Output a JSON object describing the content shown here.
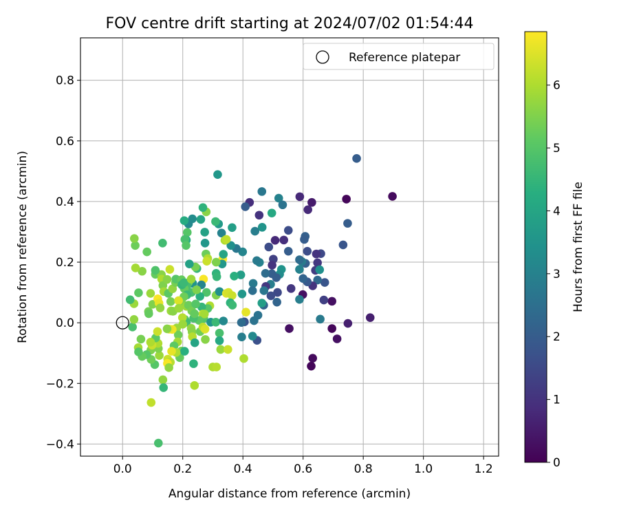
{
  "chart_data": {
    "type": "scatter",
    "title": "FOV centre drift starting at 2024/07/02 01:54:44",
    "xlabel": "Angular distance from reference (arcmin)",
    "ylabel": "Rotation from reference (arcmin)",
    "xlim": [
      -0.14,
      1.25
    ],
    "ylim": [
      -0.44,
      0.94
    ],
    "xticks": [
      0.0,
      0.2,
      0.4,
      0.6,
      0.8,
      1.0,
      1.2
    ],
    "xtick_labels": [
      "0.0",
      "0.2",
      "0.4",
      "0.6",
      "0.8",
      "1.0",
      "1.2"
    ],
    "yticks": [
      -0.4,
      -0.2,
      0.0,
      0.2,
      0.4,
      0.6,
      0.8
    ],
    "ytick_labels": [
      "−0.4",
      "−0.2",
      "0.0",
      "0.2",
      "0.4",
      "0.6",
      "0.8"
    ],
    "grid": true,
    "legend": {
      "position": "top-right",
      "entries": [
        {
          "label": "Reference platepar",
          "marker": "open-circle"
        }
      ]
    },
    "reference_point": {
      "x": 0.0,
      "y": 0.0
    },
    "colorbar": {
      "label": "Hours from first FF file",
      "colormap": "viridis",
      "range": [
        0,
        6.85
      ],
      "ticks": [
        0,
        1,
        2,
        3,
        4,
        5,
        6
      ],
      "tick_labels": [
        "0",
        "1",
        "2",
        "3",
        "4",
        "5",
        "6"
      ]
    },
    "points": [
      {
        "x": 0.897,
        "y": 0.417,
        "t": 0.2
      },
      {
        "x": 0.778,
        "y": 0.542,
        "t": 2.0
      },
      {
        "x": 0.744,
        "y": 0.408,
        "t": 0.1
      },
      {
        "x": 0.748,
        "y": 0.328,
        "t": 2.0
      },
      {
        "x": 0.733,
        "y": 0.257,
        "t": 1.8
      },
      {
        "x": 0.823,
        "y": 0.017,
        "t": 0.6
      },
      {
        "x": 0.749,
        "y": -0.002,
        "t": 0.6
      },
      {
        "x": 0.713,
        "y": -0.053,
        "t": 0.3
      },
      {
        "x": 0.696,
        "y": -0.019,
        "t": 0.1
      },
      {
        "x": 0.696,
        "y": 0.071,
        "t": 0.3
      },
      {
        "x": 0.669,
        "y": 0.075,
        "t": 1.3
      },
      {
        "x": 0.672,
        "y": 0.133,
        "t": 1.8
      },
      {
        "x": 0.659,
        "y": 0.228,
        "t": 1.5
      },
      {
        "x": 0.644,
        "y": 0.227,
        "t": 1.0
      },
      {
        "x": 0.648,
        "y": 0.198,
        "t": 1.1
      },
      {
        "x": 0.641,
        "y": 0.173,
        "t": 1.2
      },
      {
        "x": 0.655,
        "y": 0.175,
        "t": 3.4
      },
      {
        "x": 0.648,
        "y": 0.141,
        "t": 2.3
      },
      {
        "x": 0.632,
        "y": 0.122,
        "t": 1.0
      },
      {
        "x": 0.614,
        "y": 0.135,
        "t": 1.9
      },
      {
        "x": 0.6,
        "y": 0.146,
        "t": 2.2
      },
      {
        "x": 0.657,
        "y": 0.012,
        "t": 2.8
      },
      {
        "x": 0.632,
        "y": -0.117,
        "t": 0.2
      },
      {
        "x": 0.627,
        "y": -0.143,
        "t": 0.1
      },
      {
        "x": 0.629,
        "y": 0.397,
        "t": 0.5
      },
      {
        "x": 0.589,
        "y": 0.416,
        "t": 0.8
      },
      {
        "x": 0.616,
        "y": 0.373,
        "t": 0.8
      },
      {
        "x": 0.607,
        "y": 0.285,
        "t": 2.1
      },
      {
        "x": 0.604,
        "y": 0.275,
        "t": 2.0
      },
      {
        "x": 0.614,
        "y": 0.236,
        "t": 1.6
      },
      {
        "x": 0.608,
        "y": 0.196,
        "t": 2.1
      },
      {
        "x": 0.596,
        "y": 0.202,
        "t": 2.8
      },
      {
        "x": 0.588,
        "y": 0.208,
        "t": 2.4
      },
      {
        "x": 0.588,
        "y": 0.176,
        "t": 3.0
      },
      {
        "x": 0.599,
        "y": 0.093,
        "t": 0.3
      },
      {
        "x": 0.588,
        "y": 0.077,
        "t": 2.9
      },
      {
        "x": 0.554,
        "y": -0.019,
        "t": 0.3
      },
      {
        "x": 0.56,
        "y": 0.113,
        "t": 1.1
      },
      {
        "x": 0.551,
        "y": 0.236,
        "t": 2.0
      },
      {
        "x": 0.551,
        "y": 0.305,
        "t": 1.6
      },
      {
        "x": 0.536,
        "y": 0.273,
        "t": 0.9
      },
      {
        "x": 0.519,
        "y": 0.411,
        "t": 3.0
      },
      {
        "x": 0.532,
        "y": 0.389,
        "t": 2.6
      },
      {
        "x": 0.528,
        "y": 0.176,
        "t": 3.5
      },
      {
        "x": 0.522,
        "y": 0.16,
        "t": 3.3
      },
      {
        "x": 0.511,
        "y": 0.149,
        "t": 2.0
      },
      {
        "x": 0.515,
        "y": 0.1,
        "t": 1.5
      },
      {
        "x": 0.513,
        "y": 0.068,
        "t": 2.2
      },
      {
        "x": 0.507,
        "y": 0.272,
        "t": 0.8
      },
      {
        "x": 0.501,
        "y": 0.21,
        "t": 1.3
      },
      {
        "x": 0.497,
        "y": 0.19,
        "t": 1.0
      },
      {
        "x": 0.496,
        "y": 0.162,
        "t": 2.0
      },
      {
        "x": 0.492,
        "y": 0.127,
        "t": 2.9
      },
      {
        "x": 0.493,
        "y": 0.089,
        "t": 1.6
      },
      {
        "x": 0.486,
        "y": 0.25,
        "t": 1.6
      },
      {
        "x": 0.475,
        "y": 0.163,
        "t": 2.4
      },
      {
        "x": 0.476,
        "y": 0.12,
        "t": 1.1
      },
      {
        "x": 0.47,
        "y": 0.106,
        "t": 2.7
      },
      {
        "x": 0.469,
        "y": 0.058,
        "t": 2.2
      },
      {
        "x": 0.463,
        "y": 0.065,
        "t": 3.8
      },
      {
        "x": 0.463,
        "y": 0.433,
        "t": 2.7
      },
      {
        "x": 0.464,
        "y": 0.315,
        "t": 3.5
      },
      {
        "x": 0.454,
        "y": 0.355,
        "t": 1.0
      },
      {
        "x": 0.44,
        "y": 0.302,
        "t": 2.9
      },
      {
        "x": 0.422,
        "y": 0.397,
        "t": 0.9
      },
      {
        "x": 0.408,
        "y": 0.383,
        "t": 2.0
      },
      {
        "x": 0.496,
        "y": 0.362,
        "t": 4.1
      },
      {
        "x": 0.455,
        "y": 0.199,
        "t": 3.0
      },
      {
        "x": 0.446,
        "y": 0.205,
        "t": 2.8
      },
      {
        "x": 0.434,
        "y": 0.13,
        "t": 2.8
      },
      {
        "x": 0.432,
        "y": 0.106,
        "t": 2.5
      },
      {
        "x": 0.45,
        "y": 0.025,
        "t": 2.6
      },
      {
        "x": 0.437,
        "y": 0.007,
        "t": 2.6
      },
      {
        "x": 0.447,
        "y": -0.058,
        "t": 1.7
      },
      {
        "x": 0.432,
        "y": -0.044,
        "t": 3.2
      },
      {
        "x": 0.405,
        "y": 0.003,
        "t": 1.8
      },
      {
        "x": 0.395,
        "y": 0.001,
        "t": 2.4
      },
      {
        "x": 0.396,
        "y": -0.047,
        "t": 2.9
      },
      {
        "x": 0.397,
        "y": 0.095,
        "t": 3.6
      },
      {
        "x": 0.393,
        "y": 0.158,
        "t": 3.8
      },
      {
        "x": 0.399,
        "y": 0.234,
        "t": 3.1
      },
      {
        "x": 0.378,
        "y": 0.245,
        "t": 2.7
      },
      {
        "x": 0.36,
        "y": 0.255,
        "t": 3.4
      },
      {
        "x": 0.364,
        "y": 0.314,
        "t": 3.8
      },
      {
        "x": 0.329,
        "y": 0.296,
        "t": 3.0
      },
      {
        "x": 0.319,
        "y": 0.326,
        "t": 3.7
      },
      {
        "x": 0.309,
        "y": 0.334,
        "t": 4.6
      },
      {
        "x": 0.316,
        "y": 0.489,
        "t": 3.6
      },
      {
        "x": 0.278,
        "y": 0.366,
        "t": 5.6
      },
      {
        "x": 0.267,
        "y": 0.38,
        "t": 4.4
      },
      {
        "x": 0.273,
        "y": 0.299,
        "t": 3.9
      },
      {
        "x": 0.26,
        "y": 0.341,
        "t": 4.0
      },
      {
        "x": 0.232,
        "y": 0.343,
        "t": 3.3
      },
      {
        "x": 0.219,
        "y": 0.326,
        "t": 3.2
      },
      {
        "x": 0.205,
        "y": 0.337,
        "t": 4.2
      },
      {
        "x": 0.215,
        "y": 0.298,
        "t": 5.0
      },
      {
        "x": 0.212,
        "y": 0.273,
        "t": 4.2
      },
      {
        "x": 0.207,
        "y": 0.275,
        "t": 4.8
      },
      {
        "x": 0.211,
        "y": 0.255,
        "t": 5.0
      },
      {
        "x": 0.274,
        "y": 0.263,
        "t": 3.6
      },
      {
        "x": 0.277,
        "y": 0.227,
        "t": 5.3
      },
      {
        "x": 0.283,
        "y": 0.212,
        "t": 6.0
      },
      {
        "x": 0.28,
        "y": 0.203,
        "t": 6.3
      },
      {
        "x": 0.333,
        "y": 0.21,
        "t": 6.8
      },
      {
        "x": 0.335,
        "y": 0.226,
        "t": 4.0
      },
      {
        "x": 0.34,
        "y": 0.272,
        "t": 6.0
      },
      {
        "x": 0.345,
        "y": 0.275,
        "t": 6.2
      },
      {
        "x": 0.331,
        "y": 0.194,
        "t": 3.6
      },
      {
        "x": 0.311,
        "y": 0.2,
        "t": 5.5
      },
      {
        "x": 0.311,
        "y": 0.163,
        "t": 4.4
      },
      {
        "x": 0.313,
        "y": 0.152,
        "t": 4.5
      },
      {
        "x": 0.311,
        "y": 0.091,
        "t": 5.5
      },
      {
        "x": 0.322,
        "y": 0.103,
        "t": 3.4
      },
      {
        "x": 0.345,
        "y": 0.097,
        "t": 6.5
      },
      {
        "x": 0.352,
        "y": 0.1,
        "t": 6.4
      },
      {
        "x": 0.364,
        "y": 0.09,
        "t": 6.3
      },
      {
        "x": 0.358,
        "y": 0.066,
        "t": 4.4
      },
      {
        "x": 0.365,
        "y": 0.058,
        "t": 4.6
      },
      {
        "x": 0.371,
        "y": 0.154,
        "t": 4.3
      },
      {
        "x": 0.29,
        "y": 0.056,
        "t": 6.0
      },
      {
        "x": 0.283,
        "y": 0.047,
        "t": 5.0
      },
      {
        "x": 0.279,
        "y": 0.1,
        "t": 4.9
      },
      {
        "x": 0.269,
        "y": 0.144,
        "t": 6.8
      },
      {
        "x": 0.262,
        "y": 0.125,
        "t": 3.1
      },
      {
        "x": 0.257,
        "y": 0.087,
        "t": 4.3
      },
      {
        "x": 0.263,
        "y": 0.052,
        "t": 4.5
      },
      {
        "x": 0.267,
        "y": 0.029,
        "t": 6.2
      },
      {
        "x": 0.27,
        "y": 0.014,
        "t": 5.0
      },
      {
        "x": 0.272,
        "y": 0.029,
        "t": 5.9
      },
      {
        "x": 0.254,
        "y": 0.008,
        "t": 5.1
      },
      {
        "x": 0.247,
        "y": 0.179,
        "t": 4.5
      },
      {
        "x": 0.242,
        "y": 0.184,
        "t": 5.4
      },
      {
        "x": 0.222,
        "y": 0.194,
        "t": 3.9
      },
      {
        "x": 0.233,
        "y": 0.13,
        "t": 3.5
      },
      {
        "x": 0.229,
        "y": 0.1,
        "t": 4.8
      },
      {
        "x": 0.219,
        "y": 0.133,
        "t": 5.4
      },
      {
        "x": 0.214,
        "y": 0.122,
        "t": 4.8
      },
      {
        "x": 0.205,
        "y": 0.113,
        "t": 5.2
      },
      {
        "x": 0.214,
        "y": 0.092,
        "t": 4.6
      },
      {
        "x": 0.204,
        "y": 0.086,
        "t": 5.3
      },
      {
        "x": 0.198,
        "y": 0.063,
        "t": 5.5
      },
      {
        "x": 0.212,
        "y": 0.054,
        "t": 5.8
      },
      {
        "x": 0.219,
        "y": 0.058,
        "t": 5.3
      },
      {
        "x": 0.207,
        "y": 0.011,
        "t": 5.1
      },
      {
        "x": 0.212,
        "y": 0.002,
        "t": 4.7
      },
      {
        "x": 0.23,
        "y": 0.039,
        "t": 5.4
      },
      {
        "x": 0.236,
        "y": 0.015,
        "t": 4.8
      },
      {
        "x": 0.239,
        "y": 0.03,
        "t": 5.2
      },
      {
        "x": 0.228,
        "y": -0.018,
        "t": 5.7
      },
      {
        "x": 0.231,
        "y": -0.03,
        "t": 5.6
      },
      {
        "x": 0.232,
        "y": -0.046,
        "t": 6.1
      },
      {
        "x": 0.24,
        "y": -0.066,
        "t": 4.0
      },
      {
        "x": 0.258,
        "y": -0.029,
        "t": 5.3
      },
      {
        "x": 0.267,
        "y": -0.014,
        "t": 6.2
      },
      {
        "x": 0.274,
        "y": -0.021,
        "t": 6.5
      },
      {
        "x": 0.275,
        "y": -0.055,
        "t": 5.6
      },
      {
        "x": 0.293,
        "y": 0.002,
        "t": 3.5
      },
      {
        "x": 0.31,
        "y": 0.002,
        "t": 4.6
      },
      {
        "x": 0.322,
        "y": -0.034,
        "t": 4.8
      },
      {
        "x": 0.322,
        "y": -0.059,
        "t": 4.1
      },
      {
        "x": 0.326,
        "y": -0.088,
        "t": 5.8
      },
      {
        "x": 0.35,
        "y": -0.088,
        "t": 6.3
      },
      {
        "x": 0.335,
        "y": 0.006,
        "t": 3.2
      },
      {
        "x": 0.3,
        "y": -0.146,
        "t": 6.0
      },
      {
        "x": 0.312,
        "y": -0.146,
        "t": 6.1
      },
      {
        "x": 0.236,
        "y": -0.135,
        "t": 4.4
      },
      {
        "x": 0.239,
        "y": -0.207,
        "t": 6.0
      },
      {
        "x": 0.403,
        "y": -0.118,
        "t": 6.0
      },
      {
        "x": 0.41,
        "y": 0.035,
        "t": 6.6
      },
      {
        "x": 0.196,
        "y": -0.093,
        "t": 5.4
      },
      {
        "x": 0.19,
        "y": -0.115,
        "t": 5.2
      },
      {
        "x": 0.206,
        "y": -0.094,
        "t": 4.3
      },
      {
        "x": 0.18,
        "y": -0.017,
        "t": 5.8
      },
      {
        "x": 0.185,
        "y": -0.04,
        "t": 5.3
      },
      {
        "x": 0.183,
        "y": -0.063,
        "t": 5.9
      },
      {
        "x": 0.171,
        "y": -0.076,
        "t": 5.1
      },
      {
        "x": 0.178,
        "y": -0.098,
        "t": 6.0
      },
      {
        "x": 0.163,
        "y": -0.094,
        "t": 6.6
      },
      {
        "x": 0.15,
        "y": -0.12,
        "t": 6.3
      },
      {
        "x": 0.159,
        "y": -0.13,
        "t": 6.1
      },
      {
        "x": 0.149,
        "y": -0.134,
        "t": 6.8
      },
      {
        "x": 0.154,
        "y": -0.148,
        "t": 5.7
      },
      {
        "x": 0.165,
        "y": -0.022,
        "t": 6.7
      },
      {
        "x": 0.155,
        "y": -0.021,
        "t": 6.6
      },
      {
        "x": 0.148,
        "y": -0.02,
        "t": 5.6
      },
      {
        "x": 0.134,
        "y": -0.188,
        "t": 5.7
      },
      {
        "x": 0.136,
        "y": -0.214,
        "t": 4.5
      },
      {
        "x": 0.119,
        "y": -0.397,
        "t": 4.8
      },
      {
        "x": 0.095,
        "y": -0.263,
        "t": 6.2
      },
      {
        "x": 0.122,
        "y": -0.108,
        "t": 5.8
      },
      {
        "x": 0.119,
        "y": -0.085,
        "t": 5.5
      },
      {
        "x": 0.118,
        "y": -0.068,
        "t": 6.0
      },
      {
        "x": 0.11,
        "y": -0.05,
        "t": 5.1
      },
      {
        "x": 0.116,
        "y": -0.029,
        "t": 6.3
      },
      {
        "x": 0.107,
        "y": -0.138,
        "t": 5.0
      },
      {
        "x": 0.095,
        "y": -0.121,
        "t": 5.3
      },
      {
        "x": 0.094,
        "y": -0.09,
        "t": 5.5
      },
      {
        "x": 0.098,
        "y": -0.074,
        "t": 6.3
      },
      {
        "x": 0.093,
        "y": -0.064,
        "t": 6.0
      },
      {
        "x": 0.08,
        "y": -0.105,
        "t": 5.0
      },
      {
        "x": 0.065,
        "y": -0.111,
        "t": 5.2
      },
      {
        "x": 0.061,
        "y": -0.054,
        "t": 5.4
      },
      {
        "x": 0.052,
        "y": -0.082,
        "t": 5.9
      },
      {
        "x": 0.053,
        "y": -0.096,
        "t": 5.0
      },
      {
        "x": 0.033,
        "y": -0.014,
        "t": 4.8
      },
      {
        "x": 0.038,
        "y": 0.011,
        "t": 5.7
      },
      {
        "x": 0.038,
        "y": 0.063,
        "t": 5.8
      },
      {
        "x": 0.025,
        "y": 0.076,
        "t": 4.7
      },
      {
        "x": 0.053,
        "y": 0.099,
        "t": 5.1
      },
      {
        "x": 0.086,
        "y": 0.037,
        "t": 5.4
      },
      {
        "x": 0.087,
        "y": 0.03,
        "t": 5.2
      },
      {
        "x": 0.093,
        "y": 0.097,
        "t": 5.8
      },
      {
        "x": 0.1,
        "y": 0.061,
        "t": 5.5
      },
      {
        "x": 0.109,
        "y": 0.16,
        "t": 5.2
      },
      {
        "x": 0.117,
        "y": 0.079,
        "t": 6.8
      },
      {
        "x": 0.121,
        "y": 0.065,
        "t": 6.6
      },
      {
        "x": 0.125,
        "y": 0.049,
        "t": 5.7
      },
      {
        "x": 0.129,
        "y": 0.159,
        "t": 5.6
      },
      {
        "x": 0.13,
        "y": 0.144,
        "t": 6.0
      },
      {
        "x": 0.134,
        "y": 0.123,
        "t": 5.5
      },
      {
        "x": 0.137,
        "y": 0.103,
        "t": 5.9
      },
      {
        "x": 0.148,
        "y": 0.143,
        "t": 5.6
      },
      {
        "x": 0.152,
        "y": 0.097,
        "t": 5.1
      },
      {
        "x": 0.16,
        "y": 0.07,
        "t": 5.4
      },
      {
        "x": 0.157,
        "y": 0.176,
        "t": 6.3
      },
      {
        "x": 0.166,
        "y": 0.112,
        "t": 5.7
      },
      {
        "x": 0.161,
        "y": 0.039,
        "t": 5.8
      },
      {
        "x": 0.168,
        "y": 0.038,
        "t": 5.6
      },
      {
        "x": 0.176,
        "y": 0.133,
        "t": 5.4
      },
      {
        "x": 0.177,
        "y": 0.144,
        "t": 5.0
      },
      {
        "x": 0.186,
        "y": 0.073,
        "t": 6.5
      },
      {
        "x": 0.187,
        "y": 0.048,
        "t": 5.8
      },
      {
        "x": 0.199,
        "y": 0.017,
        "t": 6.1
      },
      {
        "x": 0.2,
        "y": -0.005,
        "t": 5.8
      },
      {
        "x": 0.109,
        "y": 0.173,
        "t": 4.9
      },
      {
        "x": 0.081,
        "y": 0.234,
        "t": 5.2
      },
      {
        "x": 0.065,
        "y": 0.17,
        "t": 5.6
      },
      {
        "x": 0.043,
        "y": 0.181,
        "t": 5.9
      },
      {
        "x": 0.042,
        "y": 0.255,
        "t": 5.3
      },
      {
        "x": 0.039,
        "y": 0.278,
        "t": 5.6
      },
      {
        "x": 0.133,
        "y": 0.263,
        "t": 4.7
      },
      {
        "x": 0.196,
        "y": 0.142,
        "t": 5.2
      },
      {
        "x": 0.197,
        "y": 0.125,
        "t": 4.5
      },
      {
        "x": 0.204,
        "y": 0.132,
        "t": 4.6
      },
      {
        "x": 0.228,
        "y": 0.144,
        "t": 5.8
      },
      {
        "x": 0.246,
        "y": 0.109,
        "t": 5.5
      },
      {
        "x": 0.243,
        "y": 0.062,
        "t": 5.0
      }
    ]
  }
}
